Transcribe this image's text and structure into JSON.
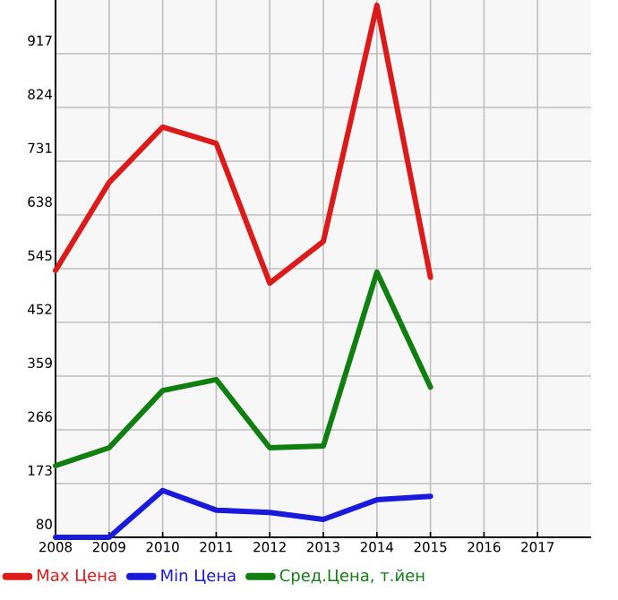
{
  "chart_data": {
    "type": "line",
    "x": [
      2008,
      2009,
      2010,
      2011,
      2012,
      2013,
      2014,
      2015
    ],
    "series": [
      {
        "name": "Max Цена",
        "color": "#dd1a1a",
        "values": [
          542,
          694,
          790,
          762,
          520,
          592,
          1001,
          530
        ]
      },
      {
        "name": "Min Цена",
        "color": "#1a1add",
        "values": [
          80,
          80,
          161,
          127,
          123,
          111,
          145,
          151
        ]
      },
      {
        "name": "Сред.Цена, т.йен",
        "color": "#0f7f0f",
        "values": [
          204,
          235,
          334,
          353,
          235,
          238,
          539,
          340
        ]
      }
    ],
    "xlim": [
      2008,
      2018
    ],
    "xticks": [
      2008,
      2009,
      2010,
      2011,
      2012,
      2013,
      2014,
      2015,
      2016,
      2017
    ],
    "ylim": [
      80,
      1010
    ],
    "yticks": [
      80,
      173,
      266,
      359,
      452,
      545,
      638,
      731,
      824,
      917
    ],
    "grid": true,
    "legend": "bottom",
    "marker": "none",
    "line_style": "solid"
  }
}
